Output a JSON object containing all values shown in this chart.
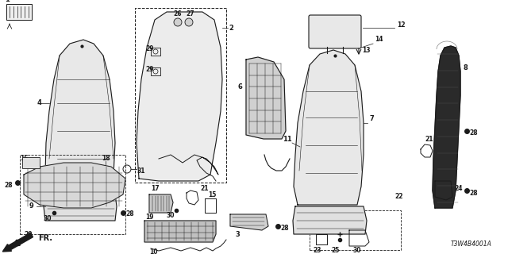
{
  "bg_color": "#ffffff",
  "line_color": "#1a1a1a",
  "diagram_id": "T3W4B4001A",
  "figsize": [
    6.4,
    3.2
  ],
  "dpi": 100
}
